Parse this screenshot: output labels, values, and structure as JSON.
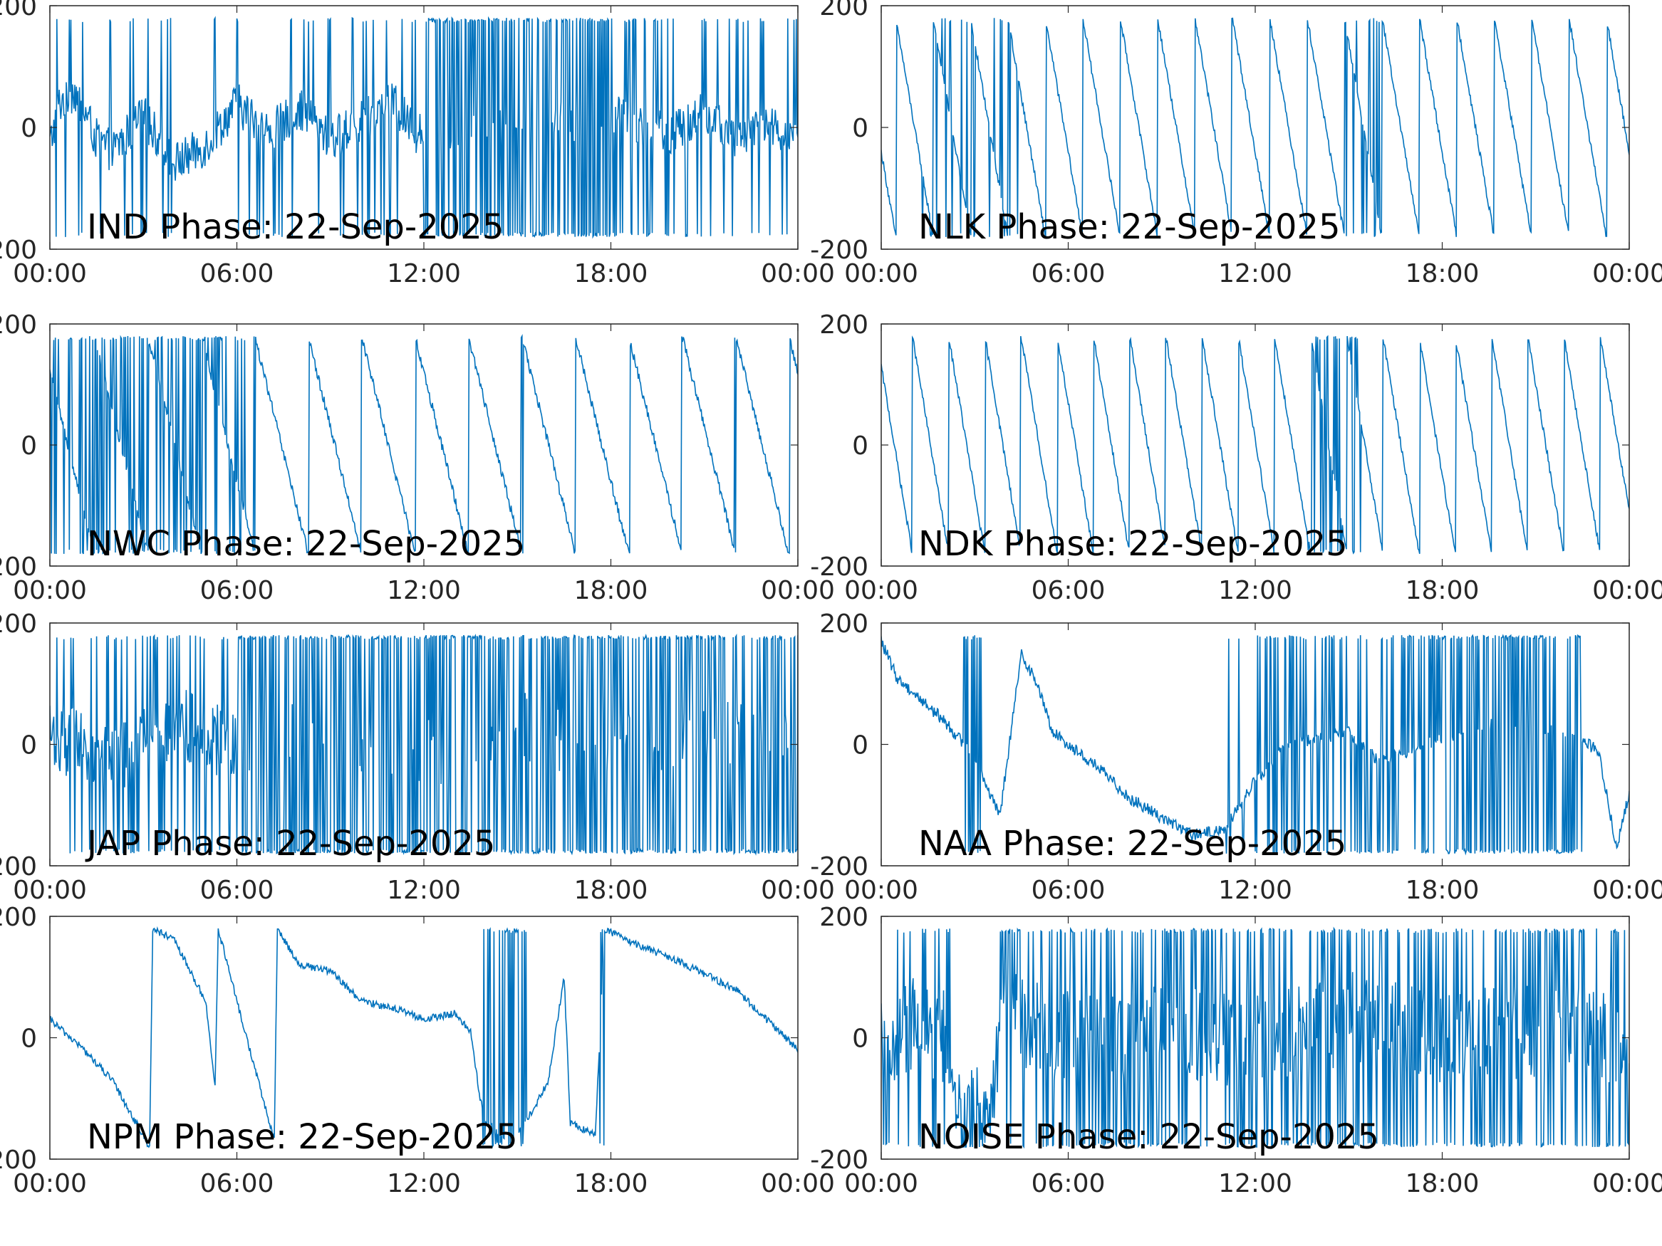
{
  "figure": {
    "line_color": "#0072BD",
    "axis_color": "#262626",
    "label_color": "#000000"
  },
  "chart_data": [
    {
      "type": "line",
      "title": "IND Phase: 22-Sep-2025",
      "xticks": [
        "00:00",
        "06:00",
        "12:00",
        "18:00",
        "00:00"
      ],
      "yticks": [
        "-200",
        "0",
        "200"
      ],
      "xlim_hours": [
        0,
        24
      ],
      "ylim": [
        -200,
        200
      ],
      "grid": false,
      "series": [
        {
          "style": "noise",
          "points": [
            [
              0,
              -30
            ],
            [
              0.3,
              40
            ],
            [
              0.8,
              60
            ],
            [
              1.5,
              -20
            ],
            [
              2,
              -40
            ],
            [
              3,
              20
            ],
            [
              4,
              -60
            ],
            [
              5,
              -30
            ],
            [
              6,
              40
            ],
            [
              7,
              -10
            ],
            [
              8,
              30
            ],
            [
              9,
              -20
            ],
            [
              10,
              10
            ],
            [
              11,
              40
            ],
            [
              11.8,
              -10
            ],
            [
              12.2,
              0
            ],
            [
              15,
              0
            ],
            [
              18,
              20
            ],
            [
              20,
              -10
            ],
            [
              21,
              30
            ],
            [
              22,
              -20
            ],
            [
              23,
              10
            ],
            [
              24,
              -20
            ]
          ],
          "amp": 35,
          "wrap": [
            [
              0,
              12,
              0.15
            ],
            [
              12,
              18,
              0.8
            ],
            [
              18,
              20,
              0.4
            ],
            [
              20,
              24,
              0.15
            ]
          ],
          "step_minutes": 1.5
        }
      ]
    },
    {
      "type": "line",
      "title": "NLK Phase: 22-Sep-2025",
      "xticks": [
        "00:00",
        "06:00",
        "12:00",
        "18:00",
        "00:00"
      ],
      "yticks": [
        "-200",
        "0",
        "200"
      ],
      "xlim_hours": [
        0,
        24
      ],
      "ylim": [
        -200,
        200
      ],
      "grid": false,
      "series": [
        {
          "style": "sawtooth",
          "start_value": -40,
          "slope_per_hour": -300,
          "amp": 6,
          "wrap": [
            [
              1.3,
              4.5,
              0.25
            ],
            [
              14.8,
              16.2,
              0.2
            ]
          ],
          "step_minutes": 1.5
        }
      ]
    },
    {
      "type": "line",
      "title": "NWC Phase: 22-Sep-2025",
      "xticks": [
        "00:00",
        "06:00",
        "12:00",
        "18:00",
        "00:00"
      ],
      "yticks": [
        "-200",
        "0",
        "200"
      ],
      "xlim_hours": [
        0,
        24
      ],
      "ylim": [
        -200,
        200
      ],
      "grid": false,
      "series": [
        {
          "style": "sawtooth",
          "start_value": 120,
          "slope_per_hour": -210,
          "amp": 8,
          "wrap": [
            [
              0,
              6.3,
              0.45
            ]
          ],
          "step_minutes": 1.5
        }
      ]
    },
    {
      "type": "line",
      "title": "NDK Phase: 22-Sep-2025",
      "xticks": [
        "00:00",
        "06:00",
        "12:00",
        "18:00",
        "00:00"
      ],
      "yticks": [
        "-200",
        "0",
        "200"
      ],
      "xlim_hours": [
        0,
        24
      ],
      "ylim": [
        -200,
        200
      ],
      "grid": false,
      "series": [
        {
          "style": "sawtooth",
          "start_value": 130,
          "slope_per_hour": -310,
          "amp": 6,
          "wrap": [
            [
              13.7,
              15.4,
              0.45
            ]
          ],
          "step_minutes": 1.5
        }
      ]
    },
    {
      "type": "line",
      "title": "JAP Phase: 22-Sep-2025",
      "xticks": [
        "00:00",
        "06:00",
        "12:00",
        "18:00",
        "00:00"
      ],
      "yticks": [
        "-200",
        "0",
        "200"
      ],
      "xlim_hours": [
        0,
        24
      ],
      "ylim": [
        -200,
        200
      ],
      "grid": false,
      "series": [
        {
          "style": "noise",
          "points": [
            [
              0,
              20
            ],
            [
              2,
              -30
            ],
            [
              4,
              40
            ],
            [
              6,
              -10
            ],
            [
              9,
              20
            ],
            [
              12,
              -20
            ],
            [
              15,
              30
            ],
            [
              18,
              -10
            ],
            [
              21,
              20
            ],
            [
              24,
              0
            ]
          ],
          "amp": 60,
          "wrap": [
            [
              0,
              6,
              0.25
            ],
            [
              6,
              24,
              0.85
            ]
          ],
          "step_minutes": 1.5
        }
      ]
    },
    {
      "type": "line",
      "title": "NAA Phase: 22-Sep-2025",
      "xticks": [
        "00:00",
        "06:00",
        "12:00",
        "18:00",
        "00:00"
      ],
      "yticks": [
        "-200",
        "0",
        "200"
      ],
      "xlim_hours": [
        0,
        24
      ],
      "ylim": [
        -200,
        200
      ],
      "grid": false,
      "series": [
        {
          "style": "noise",
          "points": [
            [
              0,
              170
            ],
            [
              0.5,
              110
            ],
            [
              2,
              40
            ],
            [
              3,
              -20
            ],
            [
              3.8,
              -120
            ],
            [
              4.5,
              150
            ],
            [
              5,
              100
            ],
            [
              5.5,
              20
            ],
            [
              7,
              -40
            ],
            [
              8,
              -90
            ],
            [
              9,
              -120
            ],
            [
              10,
              -150
            ],
            [
              11,
              -140
            ],
            [
              12,
              -60
            ],
            [
              13,
              0
            ],
            [
              15,
              20
            ],
            [
              16,
              -30
            ],
            [
              18,
              10
            ],
            [
              20,
              40
            ],
            [
              22,
              20
            ],
            [
              23,
              -10
            ],
            [
              23.6,
              -170
            ],
            [
              24,
              -80
            ]
          ],
          "amp": 10,
          "wrap": [
            [
              2.6,
              3.2,
              0.6
            ],
            [
              11,
              11.8,
              0.25
            ],
            [
              12,
              18,
              0.5
            ],
            [
              18,
              22.5,
              0.85
            ]
          ],
          "step_minutes": 1.5
        }
      ]
    },
    {
      "type": "line",
      "title": "NPM Phase: 22-Sep-2025",
      "xticks": [
        "00:00",
        "06:00",
        "12:00",
        "18:00",
        "00:00"
      ],
      "yticks": [
        "-200",
        "0",
        "200"
      ],
      "xlim_hours": [
        0,
        24
      ],
      "ylim": [
        -200,
        200
      ],
      "grid": false,
      "series": [
        {
          "style": "piecewise",
          "points": [
            [
              0,
              30
            ],
            [
              1,
              -15
            ],
            [
              2,
              -70
            ],
            [
              3.2,
              -180
            ],
            [
              3.3,
              180
            ],
            [
              4,
              160
            ],
            [
              5,
              60
            ],
            [
              5.3,
              -80
            ],
            [
              5.4,
              180
            ],
            [
              6,
              60
            ],
            [
              7.2,
              -170
            ],
            [
              7.3,
              180
            ],
            [
              8,
              120
            ],
            [
              9,
              110
            ],
            [
              10,
              60
            ],
            [
              11,
              50
            ],
            [
              12,
              30
            ],
            [
              13,
              40
            ],
            [
              13.5,
              10
            ],
            [
              13.8,
              -100
            ],
            [
              14,
              -140
            ],
            [
              14.8,
              -170
            ],
            [
              15.5,
              -120
            ],
            [
              16,
              -70
            ],
            [
              16.5,
              100
            ],
            [
              16.7,
              -140
            ],
            [
              17.5,
              -160
            ],
            [
              17.8,
              180
            ],
            [
              18.5,
              160
            ],
            [
              20,
              130
            ],
            [
              22,
              80
            ],
            [
              24,
              -20
            ]
          ],
          "amp": 6,
          "wrap": [
            [
              13.9,
              15.3,
              0.75
            ],
            [
              17.6,
              17.9,
              0.6
            ]
          ],
          "step_minutes": 1.5
        }
      ]
    },
    {
      "type": "line",
      "title": "NOISE Phase: 22-Sep-2025",
      "xticks": [
        "00:00",
        "06:00",
        "12:00",
        "18:00",
        "00:00"
      ],
      "yticks": [
        "-200",
        "0",
        "200"
      ],
      "xlim_hours": [
        0,
        24
      ],
      "ylim": [
        -200,
        200
      ],
      "grid": false,
      "series": [
        {
          "style": "noise",
          "points": [
            [
              0,
              -20
            ],
            [
              1,
              20
            ],
            [
              2,
              0
            ],
            [
              2.6,
              -150
            ],
            [
              3.5,
              -100
            ],
            [
              4,
              40
            ],
            [
              6,
              0
            ],
            [
              9,
              20
            ],
            [
              12,
              -10
            ],
            [
              15,
              30
            ],
            [
              18,
              0
            ],
            [
              21,
              10
            ],
            [
              24,
              0
            ]
          ],
          "amp": 80,
          "wrap": [
            [
              0,
              2.4,
              0.25
            ],
            [
              3.8,
              24,
              0.5
            ]
          ],
          "step_minutes": 1.5
        }
      ]
    }
  ]
}
